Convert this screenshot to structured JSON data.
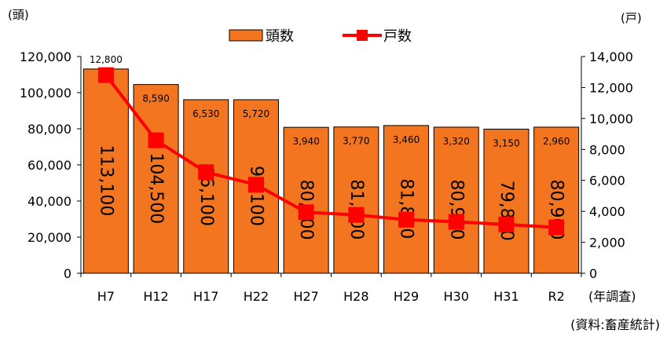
{
  "chart_data": {
    "type": "bar+line",
    "categories": [
      "H7",
      "H12",
      "H17",
      "H22",
      "H27",
      "H28",
      "H29",
      "H30",
      "H31",
      "R2"
    ],
    "x_suffix": "(年調査)",
    "series": [
      {
        "name": "頭数",
        "type": "bar",
        "axis": "left",
        "color": "#F47520",
        "values": [
          113100,
          104500,
          96100,
          96100,
          80800,
          81000,
          81800,
          80900,
          79800,
          80900
        ],
        "labels": [
          "113,100",
          "104,500",
          "96,100",
          "96,100",
          "80,800",
          "81,000",
          "81,800",
          "80,900",
          "79,800",
          "80,900"
        ]
      },
      {
        "name": "戸数",
        "type": "line",
        "axis": "right",
        "color": "#FF0000",
        "values": [
          12800,
          8590,
          6530,
          5720,
          3940,
          3770,
          3460,
          3320,
          3150,
          2960
        ],
        "labels": [
          "12,800",
          "8,590",
          "6,530",
          "5,720",
          "3,940",
          "3,770",
          "3,460",
          "3,320",
          "3,150",
          "2,960"
        ]
      }
    ],
    "y_left": {
      "unit": "(頭)",
      "ylim": [
        0,
        120000
      ],
      "ticks": [
        "0",
        "20,000",
        "40,000",
        "60,000",
        "80,000",
        "100,000",
        "120,000"
      ]
    },
    "y_right": {
      "unit": "(戸)",
      "ylim": [
        0,
        14000
      ],
      "ticks": [
        "0",
        "2,000",
        "4,000",
        "6,000",
        "8,000",
        "10,000",
        "12,000",
        "14,000"
      ]
    },
    "legend_position": "top-center",
    "grid": false
  },
  "source_note": "(資料:畜産統計)"
}
